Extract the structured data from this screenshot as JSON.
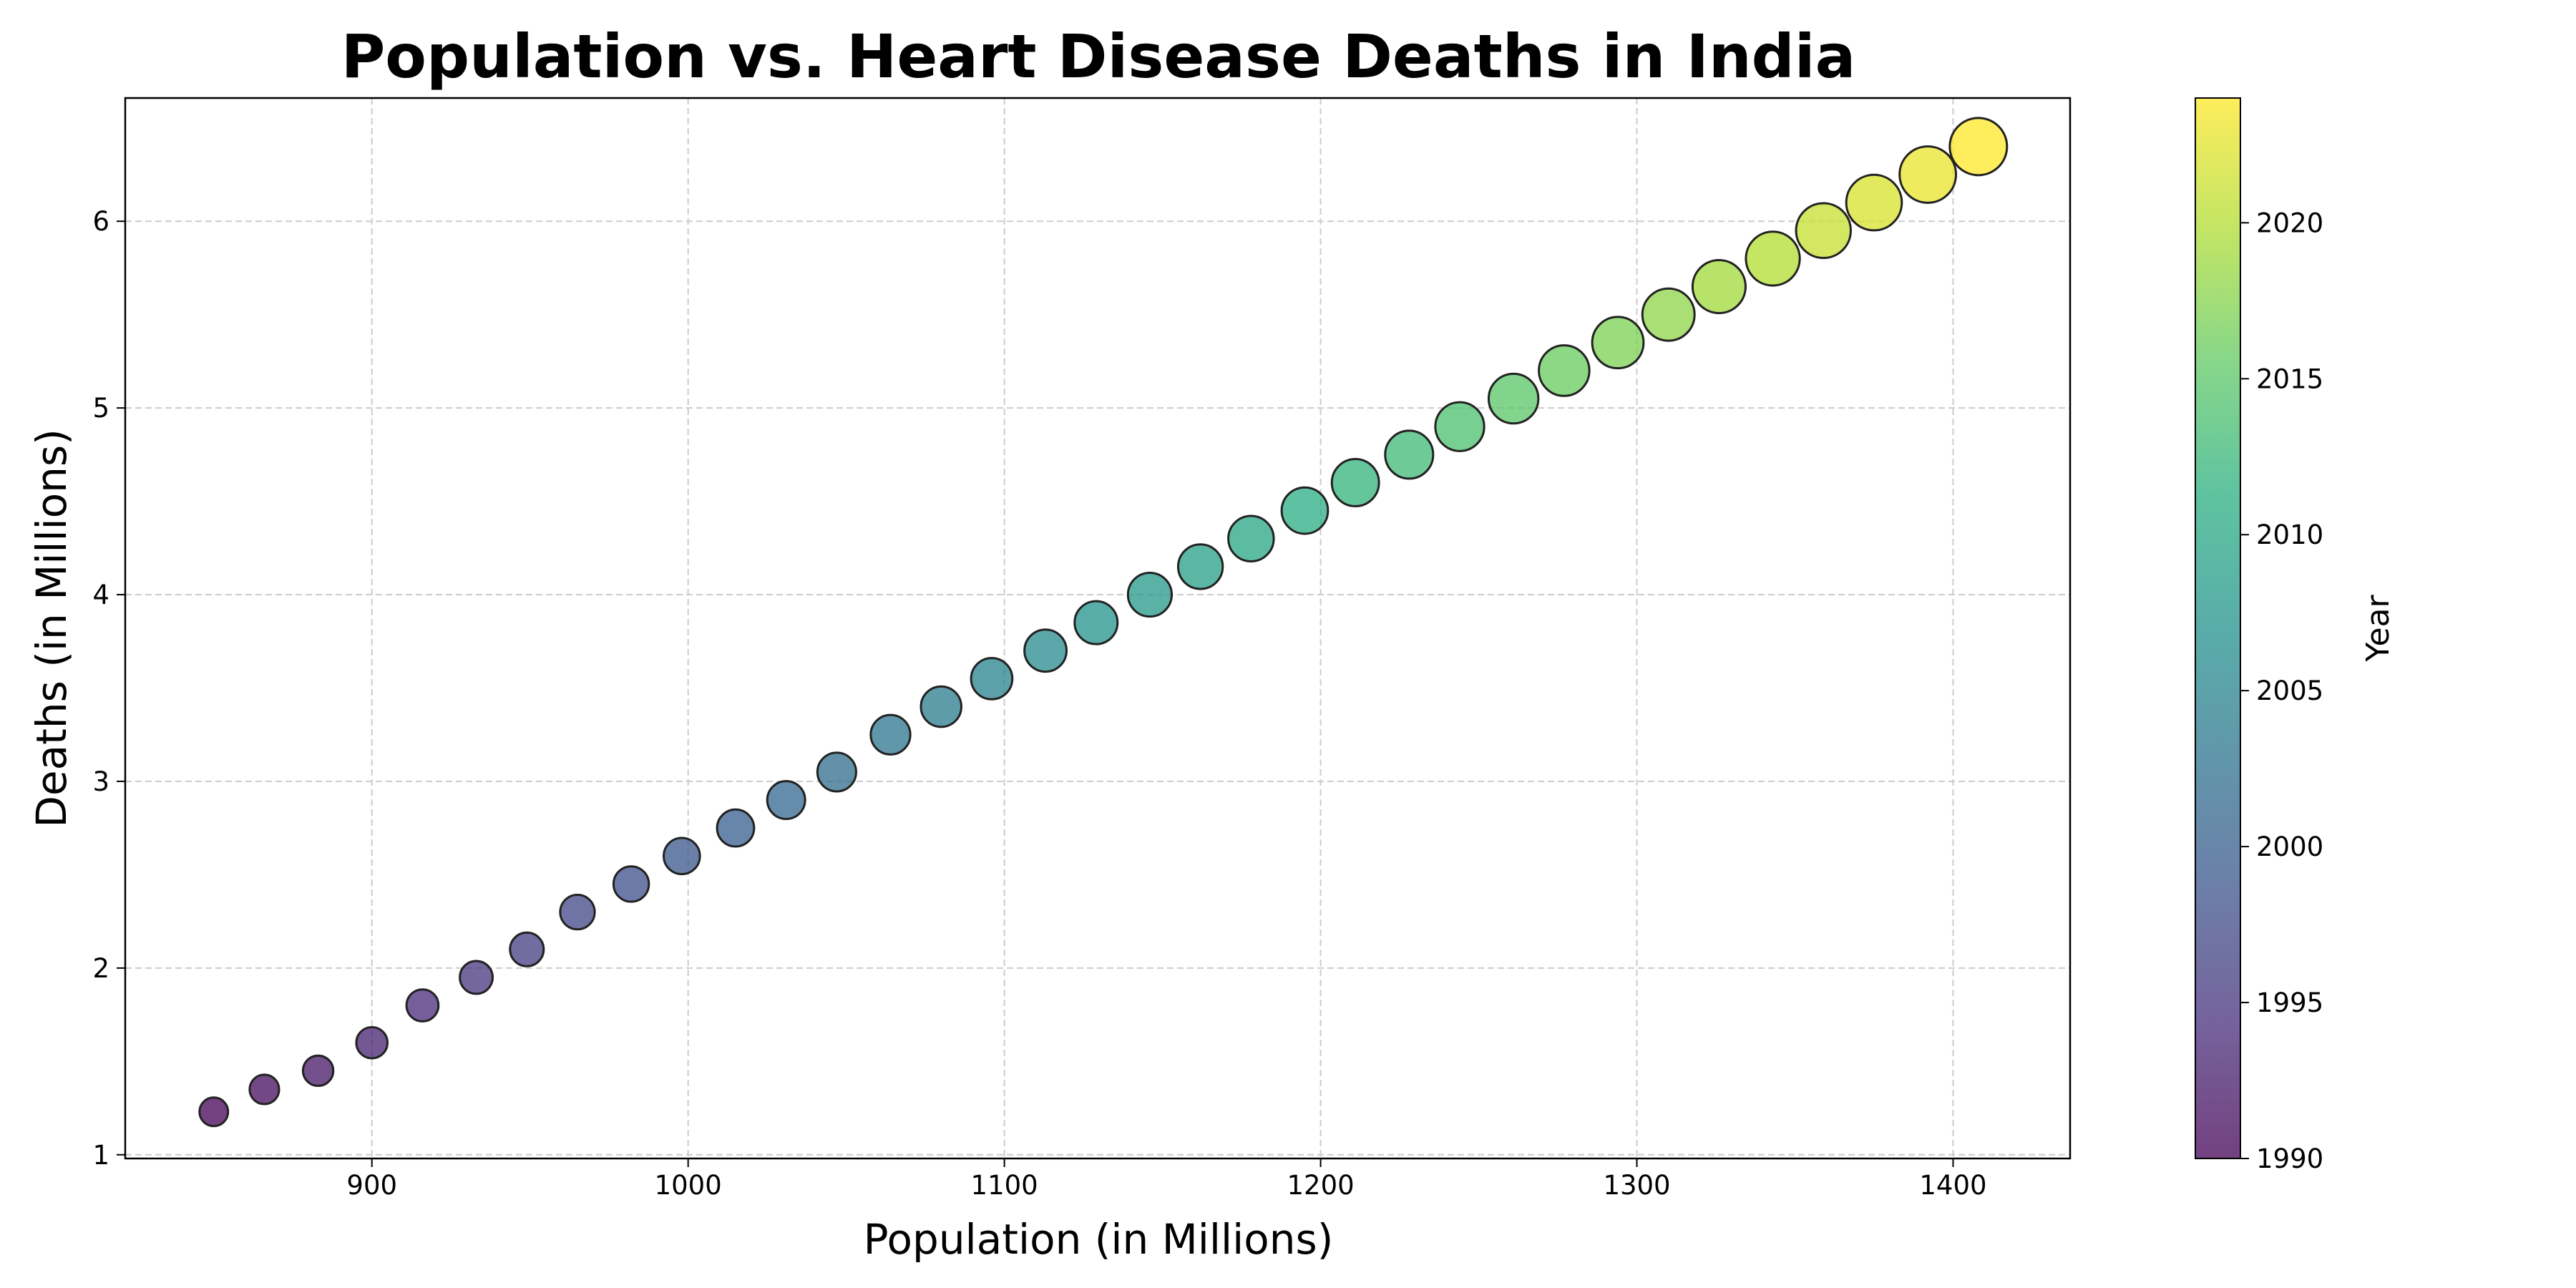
{
  "chart_data": {
    "type": "scatter",
    "title": "Population vs. Heart Disease Deaths in India",
    "xlabel": "Population (in Millions)",
    "ylabel": "Deaths (in Millions)",
    "xlim": [
      822,
      1437
    ],
    "ylim": [
      0.98,
      6.66
    ],
    "x_ticks": [
      900,
      1000,
      1100,
      1200,
      1300,
      1400
    ],
    "y_ticks": [
      1,
      2,
      3,
      4,
      5,
      6
    ],
    "grid": true,
    "grid_style": "dashed",
    "marker_edge_color": "#222222",
    "colormap": "viridis",
    "colorbar": {
      "label": "Year",
      "range": [
        1990,
        2024
      ],
      "ticks": [
        1990,
        1995,
        2000,
        2005,
        2010,
        2015,
        2020
      ]
    },
    "points": [
      {
        "year": 1990,
        "x": 850,
        "y": 1.23
      },
      {
        "year": 1991,
        "x": 866,
        "y": 1.35
      },
      {
        "year": 1992,
        "x": 883,
        "y": 1.45
      },
      {
        "year": 1993,
        "x": 900,
        "y": 1.6
      },
      {
        "year": 1994,
        "x": 916,
        "y": 1.8
      },
      {
        "year": 1995,
        "x": 933,
        "y": 1.95
      },
      {
        "year": 1996,
        "x": 949,
        "y": 2.1
      },
      {
        "year": 1997,
        "x": 965,
        "y": 2.3
      },
      {
        "year": 1998,
        "x": 982,
        "y": 2.45
      },
      {
        "year": 1999,
        "x": 998,
        "y": 2.6
      },
      {
        "year": 2000,
        "x": 1015,
        "y": 2.75
      },
      {
        "year": 2001,
        "x": 1031,
        "y": 2.9
      },
      {
        "year": 2002,
        "x": 1047,
        "y": 3.05
      },
      {
        "year": 2003,
        "x": 1064,
        "y": 3.25
      },
      {
        "year": 2004,
        "x": 1080,
        "y": 3.4
      },
      {
        "year": 2005,
        "x": 1096,
        "y": 3.55
      },
      {
        "year": 2006,
        "x": 1113,
        "y": 3.7
      },
      {
        "year": 2007,
        "x": 1129,
        "y": 3.85
      },
      {
        "year": 2008,
        "x": 1146,
        "y": 4.0
      },
      {
        "year": 2009,
        "x": 1162,
        "y": 4.15
      },
      {
        "year": 2010,
        "x": 1178,
        "y": 4.3
      },
      {
        "year": 2011,
        "x": 1195,
        "y": 4.45
      },
      {
        "year": 2012,
        "x": 1211,
        "y": 4.6
      },
      {
        "year": 2013,
        "x": 1228,
        "y": 4.75
      },
      {
        "year": 2014,
        "x": 1244,
        "y": 4.9
      },
      {
        "year": 2015,
        "x": 1261,
        "y": 5.05
      },
      {
        "year": 2016,
        "x": 1277,
        "y": 5.2
      },
      {
        "year": 2017,
        "x": 1294,
        "y": 5.35
      },
      {
        "year": 2018,
        "x": 1310,
        "y": 5.5
      },
      {
        "year": 2019,
        "x": 1326,
        "y": 5.65
      },
      {
        "year": 2020,
        "x": 1343,
        "y": 5.8
      },
      {
        "year": 2021,
        "x": 1359,
        "y": 5.95
      },
      {
        "year": 2022,
        "x": 1375,
        "y": 6.1
      },
      {
        "year": 2023,
        "x": 1392,
        "y": 6.25
      },
      {
        "year": 2024,
        "x": 1408,
        "y": 6.4
      }
    ]
  }
}
